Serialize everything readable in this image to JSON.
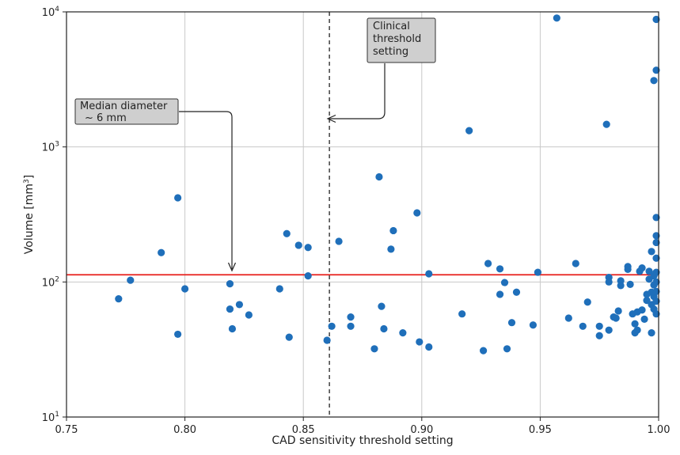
{
  "chart_data": {
    "type": "scatter",
    "title": "",
    "xlabel": "CAD sensitivity threshold setting",
    "ylabel_main": "Volume [mm",
    "ylabel_sup": "3",
    "ylabel_end": "]",
    "xlim": [
      0.75,
      1.0
    ],
    "ylim": [
      10,
      10000
    ],
    "yscale": "log",
    "grid": true,
    "x_ticks": [
      {
        "value": 0.75,
        "label": "0.75"
      },
      {
        "value": 0.8,
        "label": "0.80"
      },
      {
        "value": 0.85,
        "label": "0.85"
      },
      {
        "value": 0.9,
        "label": "0.90"
      },
      {
        "value": 0.95,
        "label": "0.95"
      },
      {
        "value": 1.0,
        "label": "1.00"
      }
    ],
    "y_ticks": [
      {
        "value": 10,
        "base": "10",
        "exp": "1"
      },
      {
        "value": 100,
        "base": "10",
        "exp": "2"
      },
      {
        "value": 1000,
        "base": "10",
        "exp": "3"
      },
      {
        "value": 10000,
        "base": "10",
        "exp": "4"
      }
    ],
    "marker_color": "#1f6fba",
    "reference_line": {
      "y": 113,
      "color": "#e8211d"
    },
    "threshold_line": {
      "x": 0.861,
      "color": "#222222",
      "style": "dashed"
    },
    "annotations": [
      {
        "lines": [
          "Median diameter",
          "~ 6 mm"
        ]
      },
      {
        "lines": [
          "Clinical",
          "threshold",
          "setting"
        ]
      }
    ],
    "points": [
      [
        0.772,
        75
      ],
      [
        0.777,
        103
      ],
      [
        0.79,
        165
      ],
      [
        0.797,
        420
      ],
      [
        0.797,
        41
      ],
      [
        0.8,
        89
      ],
      [
        0.819,
        97
      ],
      [
        0.819,
        63
      ],
      [
        0.82,
        45
      ],
      [
        0.823,
        68
      ],
      [
        0.827,
        57
      ],
      [
        0.84,
        89
      ],
      [
        0.843,
        228
      ],
      [
        0.844,
        39
      ],
      [
        0.848,
        187
      ],
      [
        0.852,
        180
      ],
      [
        0.852,
        111
      ],
      [
        0.86,
        37
      ],
      [
        0.862,
        47
      ],
      [
        0.865,
        200
      ],
      [
        0.87,
        55
      ],
      [
        0.87,
        47
      ],
      [
        0.88,
        32
      ],
      [
        0.882,
        600
      ],
      [
        0.883,
        66
      ],
      [
        0.884,
        45
      ],
      [
        0.887,
        175
      ],
      [
        0.888,
        240
      ],
      [
        0.892,
        42
      ],
      [
        0.898,
        325
      ],
      [
        0.899,
        36
      ],
      [
        0.903,
        115
      ],
      [
        0.903,
        33
      ],
      [
        0.917,
        58
      ],
      [
        0.92,
        1320
      ],
      [
        0.926,
        31
      ],
      [
        0.928,
        137
      ],
      [
        0.933,
        125
      ],
      [
        0.933,
        81
      ],
      [
        0.935,
        99
      ],
      [
        0.936,
        32
      ],
      [
        0.938,
        50
      ],
      [
        0.94,
        84
      ],
      [
        0.947,
        48
      ],
      [
        0.949,
        118
      ],
      [
        0.957,
        9000
      ],
      [
        0.962,
        54
      ],
      [
        0.965,
        137
      ],
      [
        0.968,
        47
      ],
      [
        0.97,
        71
      ],
      [
        0.975,
        47
      ],
      [
        0.975,
        40
      ],
      [
        0.978,
        1470
      ],
      [
        0.979,
        44
      ],
      [
        0.979,
        108
      ],
      [
        0.979,
        100
      ],
      [
        0.981,
        55
      ],
      [
        0.982,
        54
      ],
      [
        0.983,
        61
      ],
      [
        0.984,
        102
      ],
      [
        0.984,
        94
      ],
      [
        0.987,
        124
      ],
      [
        0.987,
        130
      ],
      [
        0.988,
        96
      ],
      [
        0.989,
        58
      ],
      [
        0.99,
        49
      ],
      [
        0.99,
        42
      ],
      [
        0.991,
        44
      ],
      [
        0.991,
        60
      ],
      [
        0.992,
        120
      ],
      [
        0.993,
        127
      ],
      [
        0.993,
        62
      ],
      [
        0.994,
        53
      ],
      [
        0.995,
        81
      ],
      [
        0.995,
        73
      ],
      [
        0.996,
        120
      ],
      [
        0.996,
        105
      ],
      [
        0.997,
        168
      ],
      [
        0.997,
        68
      ],
      [
        0.997,
        42
      ],
      [
        0.998,
        3100
      ],
      [
        0.998,
        95
      ],
      [
        0.998,
        78
      ],
      [
        0.998,
        63
      ],
      [
        0.999,
        8800
      ],
      [
        0.999,
        3700
      ],
      [
        0.999,
        300
      ],
      [
        0.999,
        220
      ],
      [
        0.999,
        196
      ],
      [
        0.999,
        150
      ],
      [
        0.999,
        118
      ],
      [
        0.999,
        100
      ],
      [
        0.999,
        85
      ],
      [
        0.999,
        72
      ],
      [
        0.999,
        58
      ],
      [
        0.998,
        111
      ],
      [
        0.997,
        84
      ]
    ]
  }
}
